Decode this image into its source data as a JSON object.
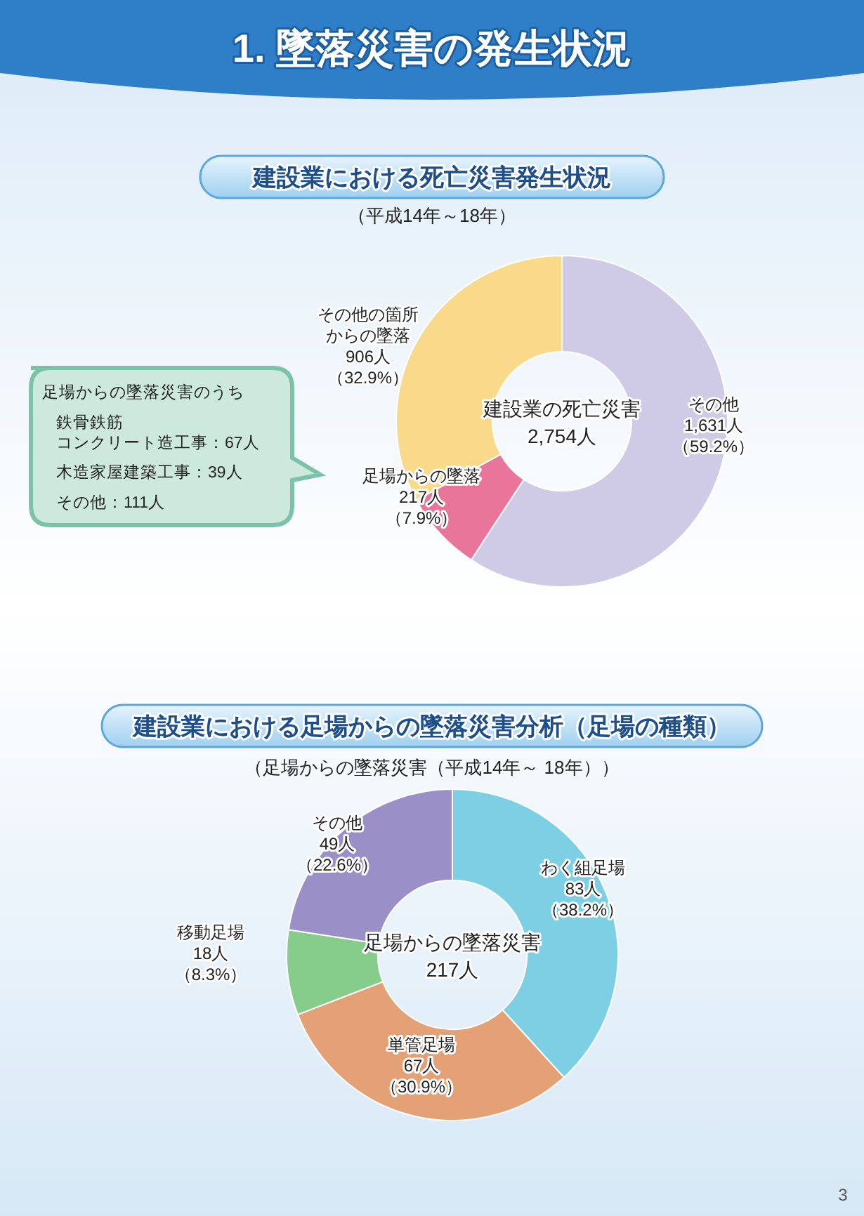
{
  "chart_data": [
    {
      "type": "donut",
      "title": "建設業における死亡災害発生状況",
      "subtitle": "（平成14年～18年）",
      "categories": [
        "その他",
        "足場からの墜落",
        "その他の箇所からの墜落"
      ],
      "values": [
        1631,
        217,
        906
      ],
      "value_labels": [
        "1,631人（59.2%）",
        "217人（7.9%）",
        "906人（32.9%）"
      ],
      "colors": [
        "#cfcbe6",
        "#e9759a",
        "#f9d98a"
      ],
      "annotations": [
        "1. 墜落災害の発生状況",
        "建設業の死亡災害2,754人",
        "足場からの墜落災害のうち",
        "鉄骨鉄筋コンクリート造工事：67人",
        "木造家屋建築工事：39人",
        "その他：111人"
      ]
    },
    {
      "type": "donut",
      "title": "建設業における足場からの墜落災害分析（足場の種類）",
      "subtitle": "（足場からの墜落災害（平成14年～ 18年））",
      "categories": [
        "わく組足場",
        "単管足場",
        "移動足場",
        "その他"
      ],
      "values": [
        83,
        67,
        18,
        49
      ],
      "value_labels": [
        "83人（38.2%）",
        "67人（30.9%）",
        "18人（8.3%）",
        "49人（22.6%）"
      ],
      "colors": [
        "#7dcfe3",
        "#e3a175",
        "#86cc8a",
        "#9b8fc7"
      ],
      "annotations": [
        "足場からの墜落災害217人",
        "3"
      ]
    }
  ]
}
